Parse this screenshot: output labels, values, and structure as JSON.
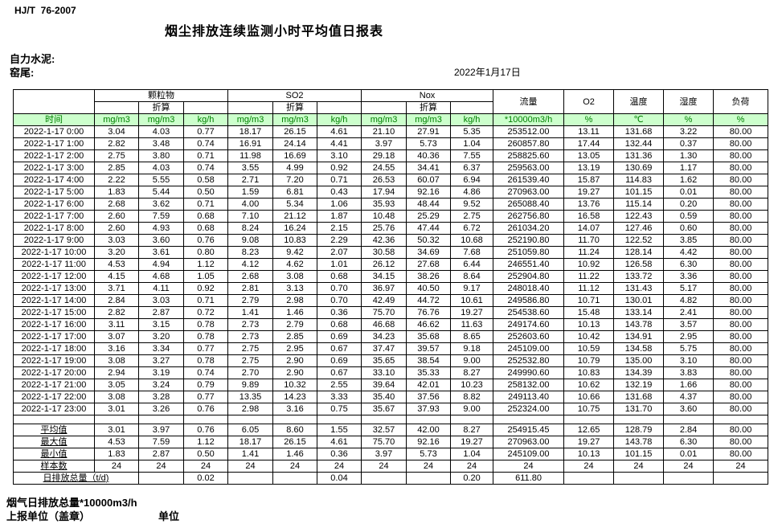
{
  "page": {
    "standard_code": "HJ/T  76-2007",
    "title": "烟尘排放连续监测小时平均值日报表",
    "company": "自力水泥:",
    "location": "窑尾:",
    "date": "2022年1月17日",
    "footer_total_label": "烟气日排放总量*10000m3/h",
    "footer_report_unit": "上报单位（盖章）",
    "footer_unit": "单位"
  },
  "colors": {
    "header_row_bg": "#ccffcc",
    "header_row_text": "#008000",
    "border": "#000000"
  },
  "table": {
    "header": {
      "time_label": "时间",
      "groups": [
        {
          "label": "颗粒物",
          "sub": "折算"
        },
        {
          "label": "SO2",
          "sub": "折算"
        },
        {
          "label": "Nox",
          "sub": "折算"
        }
      ],
      "singles": [
        {
          "label": "流量",
          "unit": "*10000m3/h"
        },
        {
          "label": "O2",
          "unit": "%"
        },
        {
          "label": "温度",
          "unit": "℃"
        },
        {
          "label": "湿度",
          "unit": "%"
        },
        {
          "label": "负荷",
          "unit": "%"
        }
      ],
      "unit_cells": [
        "mg/m3",
        "mg/m3",
        "kg/h",
        "mg/m3",
        "mg/m3",
        "kg/h",
        "mg/m3",
        "mg/m3",
        "kg/h",
        "*10000m3/h",
        "%",
        "℃",
        "%",
        "%"
      ]
    },
    "rows": [
      {
        "time": "2022-1-17 0:00",
        "values": [
          "3.04",
          "4.03",
          "0.77",
          "18.17",
          "26.15",
          "4.61",
          "21.10",
          "27.91",
          "5.35",
          "253512.00",
          "13.11",
          "131.68",
          "3.22",
          "80.00"
        ]
      },
      {
        "time": "2022-1-17 1:00",
        "values": [
          "2.82",
          "3.48",
          "0.74",
          "16.91",
          "24.14",
          "4.41",
          "3.97",
          "5.73",
          "1.04",
          "260857.80",
          "17.44",
          "132.44",
          "0.37",
          "80.00"
        ]
      },
      {
        "time": "2022-1-17 2:00",
        "values": [
          "2.75",
          "3.80",
          "0.71",
          "11.98",
          "16.69",
          "3.10",
          "29.18",
          "40.36",
          "7.55",
          "258825.60",
          "13.05",
          "131.36",
          "1.30",
          "80.00"
        ]
      },
      {
        "time": "2022-1-17 3:00",
        "values": [
          "2.85",
          "4.03",
          "0.74",
          "3.55",
          "4.99",
          "0.92",
          "24.55",
          "34.41",
          "6.37",
          "259563.00",
          "13.19",
          "130.69",
          "1.17",
          "80.00"
        ]
      },
      {
        "time": "2022-1-17 4:00",
        "values": [
          "2.22",
          "5.55",
          "0.58",
          "2.71",
          "7.20",
          "0.71",
          "26.53",
          "60.07",
          "6.94",
          "261539.40",
          "15.87",
          "114.83",
          "1.62",
          "80.00"
        ]
      },
      {
        "time": "2022-1-17 5:00",
        "values": [
          "1.83",
          "5.44",
          "0.50",
          "1.59",
          "6.81",
          "0.43",
          "17.94",
          "92.16",
          "4.86",
          "270963.00",
          "19.27",
          "101.15",
          "0.01",
          "80.00"
        ]
      },
      {
        "time": "2022-1-17 6:00",
        "values": [
          "2.68",
          "3.62",
          "0.71",
          "4.00",
          "5.34",
          "1.06",
          "35.93",
          "48.44",
          "9.52",
          "265088.40",
          "13.76",
          "115.14",
          "0.20",
          "80.00"
        ]
      },
      {
        "time": "2022-1-17 7:00",
        "values": [
          "2.60",
          "7.59",
          "0.68",
          "7.10",
          "21.12",
          "1.87",
          "10.48",
          "25.29",
          "2.75",
          "262756.80",
          "16.58",
          "122.43",
          "0.59",
          "80.00"
        ]
      },
      {
        "time": "2022-1-17 8:00",
        "values": [
          "2.60",
          "4.93",
          "0.68",
          "8.24",
          "16.24",
          "2.15",
          "25.76",
          "47.44",
          "6.72",
          "261034.20",
          "14.07",
          "127.46",
          "0.60",
          "80.00"
        ]
      },
      {
        "time": "2022-1-17 9:00",
        "values": [
          "3.03",
          "3.60",
          "0.76",
          "9.08",
          "10.83",
          "2.29",
          "42.36",
          "50.32",
          "10.68",
          "252190.80",
          "11.70",
          "122.52",
          "3.85",
          "80.00"
        ]
      },
      {
        "time": "2022-1-17 10:00",
        "values": [
          "3.20",
          "3.61",
          "0.80",
          "8.23",
          "9.42",
          "2.07",
          "30.58",
          "34.69",
          "7.68",
          "251059.80",
          "11.24",
          "128.14",
          "4.42",
          "80.00"
        ]
      },
      {
        "time": "2022-1-17 11:00",
        "values": [
          "4.53",
          "4.94",
          "1.12",
          "4.12",
          "4.62",
          "1.01",
          "26.12",
          "27.68",
          "6.44",
          "246551.40",
          "10.92",
          "126.58",
          "6.30",
          "80.00"
        ]
      },
      {
        "time": "2022-1-17 12:00",
        "values": [
          "4.15",
          "4.68",
          "1.05",
          "2.68",
          "3.08",
          "0.68",
          "34.15",
          "38.26",
          "8.64",
          "252904.80",
          "11.22",
          "133.72",
          "3.36",
          "80.00"
        ]
      },
      {
        "time": "2022-1-17 13:00",
        "values": [
          "3.71",
          "4.11",
          "0.92",
          "2.81",
          "3.13",
          "0.70",
          "36.97",
          "40.50",
          "9.17",
          "248018.40",
          "11.12",
          "131.43",
          "5.17",
          "80.00"
        ]
      },
      {
        "time": "2022-1-17 14:00",
        "values": [
          "2.84",
          "3.03",
          "0.71",
          "2.79",
          "2.98",
          "0.70",
          "42.49",
          "44.72",
          "10.61",
          "249586.80",
          "10.71",
          "130.01",
          "4.82",
          "80.00"
        ]
      },
      {
        "time": "2022-1-17 15:00",
        "values": [
          "2.82",
          "2.87",
          "0.72",
          "1.41",
          "1.46",
          "0.36",
          "75.70",
          "76.76",
          "19.27",
          "254538.60",
          "15.48",
          "133.14",
          "2.41",
          "80.00"
        ]
      },
      {
        "time": "2022-1-17 16:00",
        "values": [
          "3.11",
          "3.15",
          "0.78",
          "2.73",
          "2.79",
          "0.68",
          "46.68",
          "46.62",
          "11.63",
          "249174.60",
          "10.13",
          "143.78",
          "3.57",
          "80.00"
        ]
      },
      {
        "time": "2022-1-17 17:00",
        "values": [
          "3.07",
          "3.20",
          "0.78",
          "2.73",
          "2.85",
          "0.69",
          "34.23",
          "35.68",
          "8.65",
          "252603.60",
          "10.42",
          "134.91",
          "2.95",
          "80.00"
        ]
      },
      {
        "time": "2022-1-17 18:00",
        "values": [
          "3.16",
          "3.34",
          "0.77",
          "2.75",
          "2.95",
          "0.67",
          "37.47",
          "39.57",
          "9.18",
          "245109.00",
          "10.59",
          "134.58",
          "5.75",
          "80.00"
        ]
      },
      {
        "time": "2022-1-17 19:00",
        "values": [
          "3.08",
          "3.27",
          "0.78",
          "2.75",
          "2.90",
          "0.69",
          "35.65",
          "38.54",
          "9.00",
          "252532.80",
          "10.79",
          "135.00",
          "3.10",
          "80.00"
        ]
      },
      {
        "time": "2022-1-17 20:00",
        "values": [
          "2.94",
          "3.19",
          "0.74",
          "2.70",
          "2.90",
          "0.67",
          "33.10",
          "35.33",
          "8.27",
          "249990.60",
          "10.83",
          "134.39",
          "3.83",
          "80.00"
        ]
      },
      {
        "time": "2022-1-17 21:00",
        "values": [
          "3.05",
          "3.24",
          "0.79",
          "9.89",
          "10.32",
          "2.55",
          "39.64",
          "42.01",
          "10.23",
          "258132.00",
          "10.62",
          "132.19",
          "1.66",
          "80.00"
        ]
      },
      {
        "time": "2022-1-17 22:00",
        "values": [
          "3.08",
          "3.28",
          "0.77",
          "13.35",
          "14.23",
          "3.33",
          "35.40",
          "37.56",
          "8.82",
          "249113.40",
          "10.66",
          "131.68",
          "4.37",
          "80.00"
        ]
      },
      {
        "time": "2022-1-17 23:00",
        "values": [
          "3.01",
          "3.26",
          "0.76",
          "2.98",
          "3.16",
          "0.75",
          "35.67",
          "37.93",
          "9.00",
          "252324.00",
          "10.75",
          "131.70",
          "3.60",
          "80.00"
        ]
      }
    ],
    "summary": [
      {
        "label": "平均值",
        "values": [
          "3.01",
          "3.97",
          "0.76",
          "6.05",
          "8.60",
          "1.55",
          "32.57",
          "42.00",
          "8.27",
          "254915.45",
          "12.65",
          "128.79",
          "2.84",
          "80.00"
        ]
      },
      {
        "label": "最大值",
        "values": [
          "4.53",
          "7.59",
          "1.12",
          "18.17",
          "26.15",
          "4.61",
          "75.70",
          "92.16",
          "19.27",
          "270963.00",
          "19.27",
          "143.78",
          "6.30",
          "80.00"
        ]
      },
      {
        "label": "最小值",
        "values": [
          "1.83",
          "2.87",
          "0.50",
          "1.41",
          "1.46",
          "0.36",
          "3.97",
          "5.73",
          "1.04",
          "245109.00",
          "10.13",
          "101.15",
          "0.01",
          "80.00"
        ]
      },
      {
        "label": "样本数",
        "values": [
          "24",
          "24",
          "24",
          "24",
          "24",
          "24",
          "24",
          "24",
          "24",
          "24",
          "24",
          "24",
          "24",
          "24"
        ]
      }
    ],
    "total_row": {
      "label": "日排放总量（t/d)",
      "values": [
        "",
        "0.02",
        "",
        "",
        "0.04",
        "",
        "",
        "0.20",
        "611.80",
        "",
        "",
        "",
        ""
      ]
    }
  }
}
